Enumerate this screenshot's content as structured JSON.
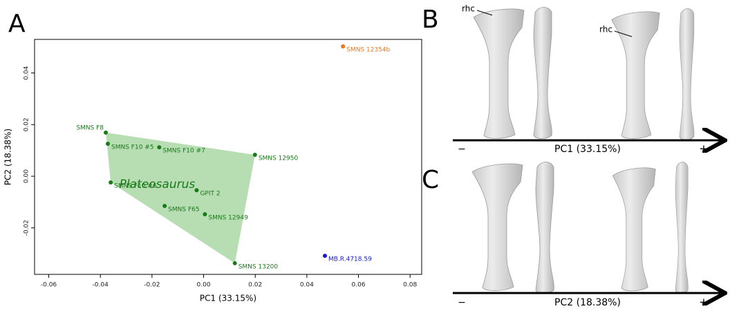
{
  "chart_data": {
    "type": "scatter",
    "xlabel": "PC1 (33.15%)",
    "ylabel": "PC2 (18.38%)",
    "xlim": [
      -0.0655,
      0.0845
    ],
    "ylim": [
      -0.038,
      0.053
    ],
    "xticks": [
      -0.06,
      -0.04,
      -0.02,
      {
        "value": 0,
        "label": "0.00"
      },
      0.02,
      0.04,
      0.06,
      0.08
    ],
    "yticks": [
      -0.02,
      {
        "value": 0,
        "label": "0.00"
      },
      0.02,
      0.04
    ],
    "series": [
      {
        "name": "Plateosaurus",
        "color": "#1a7a1a",
        "hull_color": "#9fd19a",
        "point_labels": [
          "SMNS F8",
          "SMNS F10 #5",
          "SMNS F10 #7",
          "SMNS 12950",
          "SMNS F10 #6",
          "GPIT 2",
          "SMNS F65",
          "SMNS 12949",
          "SMNS 13200"
        ],
        "x": [
          -0.0379,
          -0.0371,
          -0.0172,
          0.0199,
          -0.036,
          -0.0027,
          -0.0151,
          0.0005,
          0.0121
        ],
        "values": [
          0.0169,
          0.0126,
          0.0112,
          0.0083,
          -0.0024,
          -0.0054,
          -0.0115,
          -0.0147,
          -0.0337
        ]
      },
      {
        "name": "SMNS 12354b",
        "color": "#e87722",
        "x": [
          0.054
        ],
        "values": [
          0.0503
        ]
      },
      {
        "name": "MB.R.4718.59",
        "color": "#1a1ad0",
        "x": [
          0.047
        ],
        "values": [
          -0.0308
        ]
      }
    ]
  },
  "panels": {
    "a": "A",
    "b": "B",
    "c": "C",
    "rhc": "rhc",
    "b_axis": {
      "minus": "−",
      "label": "PC1 (33.15%)",
      "plus": "+"
    },
    "c_axis": {
      "minus": "−",
      "label": "PC2 (18.38%)",
      "plus": "+"
    }
  }
}
